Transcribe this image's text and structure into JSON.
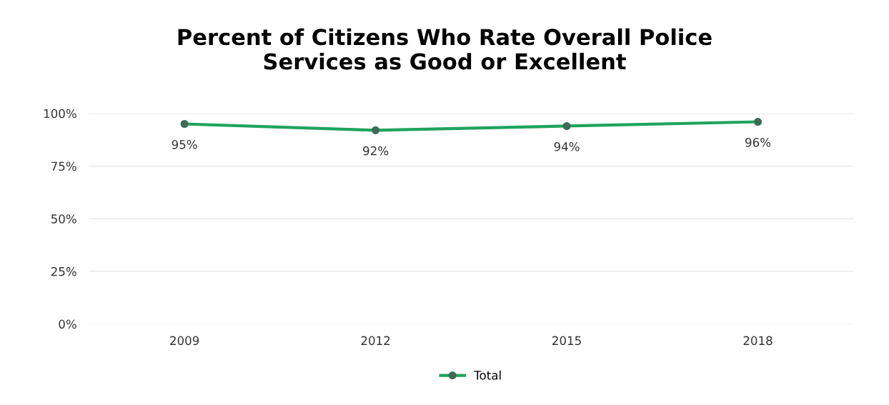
{
  "chart_data": {
    "type": "line",
    "title": "Percent of Citizens Who Rate Overall Police\nServices as Good or Excellent",
    "categories": [
      "2009",
      "2012",
      "2015",
      "2018"
    ],
    "series": [
      {
        "name": "Total",
        "color": "#1fa35e",
        "values": [
          95,
          92,
          94,
          96
        ],
        "value_labels": [
          "95%",
          "92%",
          "94%",
          "96%"
        ]
      }
    ],
    "ylim": [
      0,
      100
    ],
    "yticks": [
      {
        "value": 0,
        "label": "0%"
      },
      {
        "value": 25,
        "label": "25%"
      },
      {
        "value": 50,
        "label": "50%"
      },
      {
        "value": 75,
        "label": "75%"
      },
      {
        "value": 100,
        "label": "100%"
      }
    ],
    "grid": "y",
    "legend": "bottom",
    "marker": "circle",
    "line_style": "solid"
  }
}
